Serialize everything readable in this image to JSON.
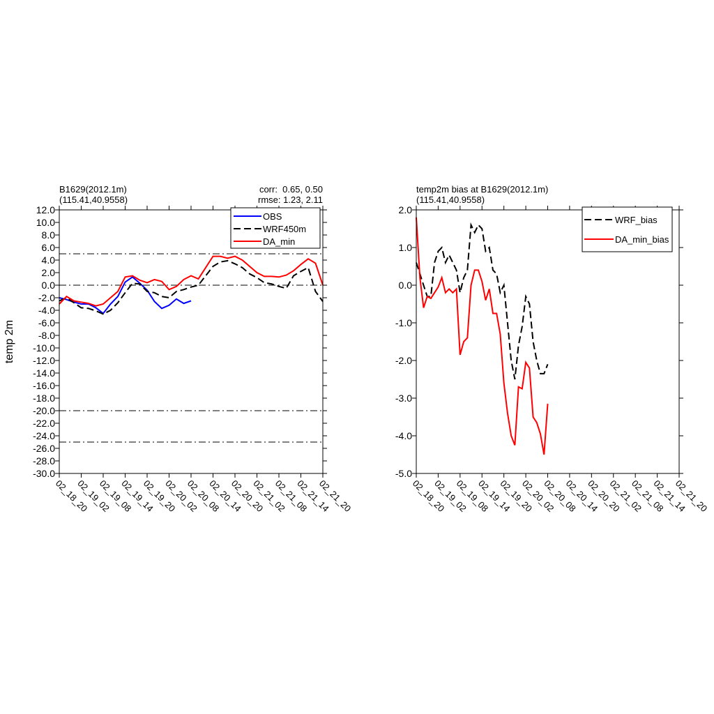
{
  "chart_data": [
    {
      "type": "line",
      "title": "B1629(2012.1m)",
      "subtitle": "(115.41,40.9558)",
      "annotations": [
        "corr:  0.65, 0.50",
        "rmse: 1.23, 2.11"
      ],
      "ylabel": "temp 2m",
      "x": [
        0,
        2,
        4,
        6,
        8,
        10,
        12,
        14,
        16,
        18,
        20,
        22,
        24,
        26,
        28,
        30,
        32,
        34,
        36,
        38,
        40,
        42,
        44,
        46,
        48,
        50,
        52,
        54,
        56,
        58,
        60,
        62,
        64,
        66,
        68,
        70,
        72
      ],
      "xlim": [
        0,
        72
      ],
      "xticks": [
        {
          "value": 0,
          "label": "02_18_20"
        },
        {
          "value": 6,
          "label": "02_19_02"
        },
        {
          "value": 12,
          "label": "02_19_08"
        },
        {
          "value": 18,
          "label": "02_19_14"
        },
        {
          "value": 24,
          "label": "02_19_20"
        },
        {
          "value": 30,
          "label": "02_20_02"
        },
        {
          "value": 36,
          "label": "02_20_08"
        },
        {
          "value": 42,
          "label": "02_20_14"
        },
        {
          "value": 48,
          "label": "02_20_20"
        },
        {
          "value": 54,
          "label": "02_21_02"
        },
        {
          "value": 60,
          "label": "02_21_08"
        },
        {
          "value": 66,
          "label": "02_21_14"
        },
        {
          "value": 72,
          "label": "02_21_20"
        }
      ],
      "ylim": [
        -30,
        12
      ],
      "yticks": [
        {
          "value": 12,
          "label": "12.0"
        },
        {
          "value": 10,
          "label": "10.0"
        },
        {
          "value": 8,
          "label": "8.0"
        },
        {
          "value": 6,
          "label": "6.0"
        },
        {
          "value": 4,
          "label": "4.0"
        },
        {
          "value": 2,
          "label": "2.0"
        },
        {
          "value": 0,
          "label": "0.0"
        },
        {
          "value": -2,
          "label": "-2.0"
        },
        {
          "value": -4,
          "label": "-4.0"
        },
        {
          "value": -6,
          "label": "-6.0"
        },
        {
          "value": -8,
          "label": "-8.0"
        },
        {
          "value": -10,
          "label": "-10.0"
        },
        {
          "value": -12,
          "label": "-12.0"
        },
        {
          "value": -14,
          "label": "-14.0"
        },
        {
          "value": -16,
          "label": "-16.0"
        },
        {
          "value": -18,
          "label": "-18.0"
        },
        {
          "value": -20,
          "label": "-20.0"
        },
        {
          "value": -22,
          "label": "-22.0"
        },
        {
          "value": -24,
          "label": "-24.0"
        },
        {
          "value": -26,
          "label": "-26.0"
        },
        {
          "value": -28,
          "label": "-28.0"
        },
        {
          "value": -30,
          "label": "-30.0"
        }
      ],
      "reference_lines": [
        5,
        0,
        -20,
        -25
      ],
      "legend": "upper right",
      "series": [
        {
          "name": "OBS",
          "color": "#0000ff",
          "dashed": false,
          "values": [
            -2.0,
            -2.3,
            -2.7,
            -3.0,
            -3.0,
            -3.6,
            -4.5,
            -3.0,
            -1.8,
            0.5,
            1.3,
            0.3,
            -0.8,
            -2.6,
            -3.7,
            -3.2,
            -2.2,
            -2.9,
            -2.5,
            null,
            null,
            null,
            null,
            null,
            null,
            null,
            null,
            null,
            null,
            null,
            null,
            null,
            null,
            null,
            null,
            null,
            null
          ]
        },
        {
          "name": "WRF450m",
          "color": "#000000",
          "dashed": true,
          "values": [
            -2.5,
            -2.0,
            -2.8,
            -3.6,
            -3.7,
            -4.1,
            -4.6,
            -4.0,
            -2.8,
            -1.2,
            0.3,
            0.2,
            -1.0,
            -1.2,
            -1.8,
            -2.0,
            -1.0,
            -0.7,
            -0.3,
            0.0,
            1.5,
            3.0,
            3.7,
            3.9,
            3.4,
            2.8,
            1.8,
            1.2,
            0.4,
            0.2,
            -0.2,
            -0.5,
            1.5,
            2.2,
            2.8,
            -1.0,
            -2.6
          ]
        },
        {
          "name": "DA_min",
          "color": "#ff0000",
          "dashed": false,
          "values": [
            -3.0,
            -1.8,
            -2.5,
            -2.7,
            -2.9,
            -3.3,
            -3.0,
            -2.0,
            -1.0,
            1.3,
            1.5,
            0.8,
            0.4,
            0.9,
            0.6,
            -0.7,
            -0.2,
            0.9,
            1.5,
            1.0,
            2.8,
            4.6,
            4.6,
            4.3,
            4.6,
            4.0,
            3.0,
            2.0,
            1.4,
            1.4,
            1.3,
            1.6,
            2.3,
            3.3,
            4.2,
            3.5,
            0.0
          ]
        }
      ]
    },
    {
      "type": "line",
      "title": "temp2m bias at B1629(2012.1m)",
      "subtitle": "(115.41,40.9558)",
      "x": [
        0,
        1,
        2,
        3,
        4,
        5,
        6,
        7,
        8,
        9,
        10,
        11,
        12,
        13,
        14,
        15,
        16,
        17,
        18,
        19,
        20,
        21,
        22,
        23,
        24,
        25,
        26,
        27,
        28,
        29,
        30,
        31,
        32,
        33,
        34,
        35,
        36
      ],
      "xlim": [
        0,
        72
      ],
      "xticks": [
        {
          "value": 0,
          "label": "02_18_20"
        },
        {
          "value": 6,
          "label": "02_19_02"
        },
        {
          "value": 12,
          "label": "02_19_08"
        },
        {
          "value": 18,
          "label": "02_19_14"
        },
        {
          "value": 24,
          "label": "02_19_20"
        },
        {
          "value": 30,
          "label": "02_20_02"
        },
        {
          "value": 36,
          "label": "02_20_08"
        },
        {
          "value": 42,
          "label": "02_20_14"
        },
        {
          "value": 48,
          "label": "02_20_20"
        },
        {
          "value": 54,
          "label": "02_21_02"
        },
        {
          "value": 60,
          "label": "02_21_08"
        },
        {
          "value": 66,
          "label": "02_21_14"
        },
        {
          "value": 72,
          "label": "02_21_20"
        }
      ],
      "ylim": [
        -5,
        2
      ],
      "yticks": [
        {
          "value": 2,
          "label": "2.0"
        },
        {
          "value": 1,
          "label": "1.0"
        },
        {
          "value": 0,
          "label": "0.0"
        },
        {
          "value": -1,
          "label": "-1.0"
        },
        {
          "value": -2,
          "label": "-2.0"
        },
        {
          "value": -3,
          "label": "-3.0"
        },
        {
          "value": -4,
          "label": "-4.0"
        },
        {
          "value": -5,
          "label": "-5.0"
        }
      ],
      "legend": "upper right",
      "series": [
        {
          "name": "WRF_bias",
          "color": "#000000",
          "dashed": true,
          "values": [
            0.6,
            0.3,
            0.0,
            -0.3,
            -0.3,
            0.6,
            0.9,
            1.0,
            0.6,
            0.8,
            0.6,
            0.4,
            -0.2,
            0.2,
            0.4,
            1.6,
            1.4,
            1.6,
            1.5,
            0.9,
            1.0,
            0.4,
            0.3,
            -0.2,
            0.0,
            -1.0,
            -2.0,
            -2.5,
            -1.6,
            -1.1,
            -0.3,
            -0.5,
            -1.5,
            -2.0,
            -2.35,
            -2.35,
            -2.1
          ]
        },
        {
          "name": "DA_min_bias",
          "color": "#ff0000",
          "dashed": false,
          "values": [
            1.8,
            0.2,
            -0.6,
            -0.3,
            -0.35,
            -0.2,
            -0.05,
            0.2,
            -0.2,
            -0.1,
            -0.2,
            -0.1,
            -1.85,
            -1.5,
            -1.4,
            0.0,
            0.4,
            0.4,
            0.1,
            -0.4,
            -0.1,
            -0.75,
            -0.75,
            -1.3,
            -2.6,
            -3.4,
            -4.0,
            -4.25,
            -2.7,
            -2.75,
            -2.05,
            -2.2,
            -3.5,
            -3.65,
            -3.95,
            -4.5,
            -3.15
          ]
        }
      ]
    }
  ]
}
